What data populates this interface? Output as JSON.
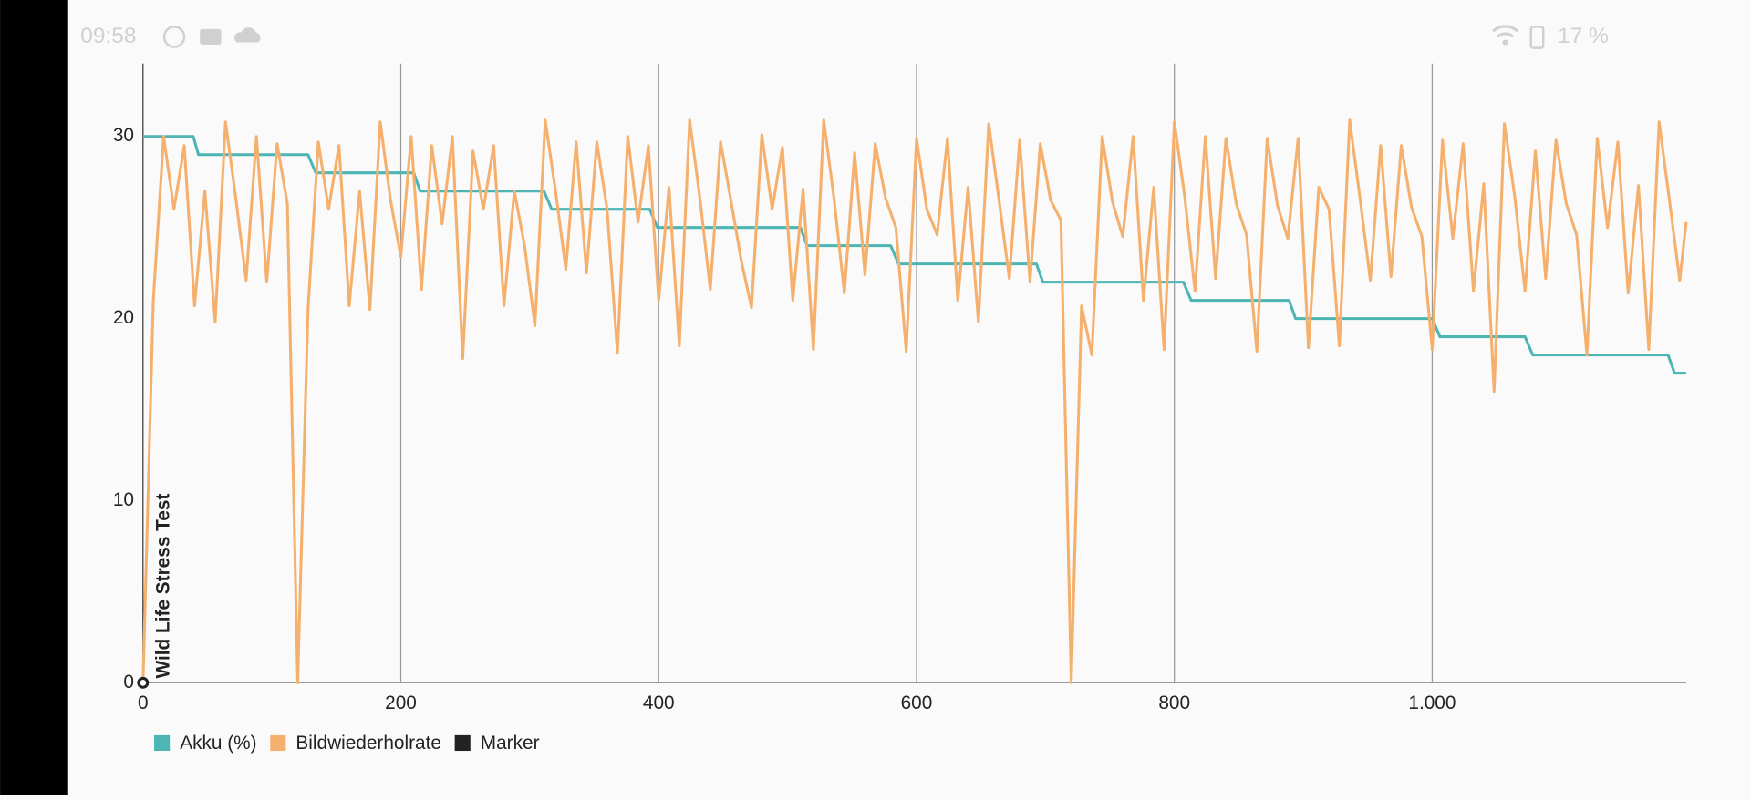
{
  "status_bar": {
    "time": "09:58",
    "battery": "17 %"
  },
  "chart_data": {
    "type": "line",
    "annotations": [
      {
        "text": "Wild Life Stress Test",
        "x": 0
      }
    ],
    "xlim": [
      0,
      1197
    ],
    "ylim": [
      0,
      34
    ],
    "xticks": [
      0,
      200,
      400,
      600,
      800,
      {
        "value": 1000,
        "label": "1.000"
      }
    ],
    "yticks": [
      0,
      10,
      20,
      30
    ],
    "grid": "x",
    "series": [
      {
        "name": "Akku (%)",
        "color": "#4db6b4",
        "style": "line",
        "x": [
          0,
          39,
          43,
          128,
          134,
          210,
          215,
          311,
          317,
          393,
          399,
          510,
          515,
          580,
          586,
          693,
          698,
          807,
          813,
          889,
          894,
          1000,
          1006,
          1072,
          1078,
          1183,
          1188,
          1197
        ],
        "values": [
          30,
          30,
          29,
          29,
          28,
          28,
          27,
          27,
          26,
          26,
          25,
          25,
          24,
          24,
          23,
          23,
          22,
          22,
          21,
          21,
          20,
          20,
          19,
          19,
          18,
          18,
          17,
          17
        ]
      },
      {
        "name": "Bildwiederholrate",
        "color": "#f5b06e",
        "style": "line",
        "x": [
          0,
          8,
          16,
          24,
          32,
          40,
          48,
          56,
          64,
          72,
          80,
          88,
          96,
          104,
          112,
          120,
          128,
          136,
          144,
          152,
          160,
          168,
          176,
          184,
          192,
          200,
          208,
          216,
          224,
          232,
          240,
          248,
          256,
          264,
          272,
          280,
          288,
          296,
          304,
          312,
          320,
          328,
          336,
          344,
          352,
          360,
          368,
          376,
          384,
          392,
          400,
          408,
          416,
          424,
          432,
          440,
          448,
          456,
          464,
          472,
          480,
          488,
          496,
          504,
          512,
          520,
          528,
          536,
          544,
          552,
          560,
          568,
          576,
          584,
          592,
          600,
          608,
          616,
          624,
          632,
          640,
          648,
          656,
          664,
          672,
          680,
          688,
          696,
          704,
          712,
          720,
          728,
          736,
          744,
          752,
          760,
          768,
          776,
          784,
          792,
          800,
          808,
          816,
          824,
          832,
          840,
          848,
          856,
          864,
          872,
          880,
          888,
          896,
          904,
          912,
          920,
          928,
          936,
          944,
          952,
          960,
          968,
          976,
          984,
          992,
          1000,
          1008,
          1016,
          1024,
          1032,
          1040,
          1048,
          1056,
          1064,
          1072,
          1080,
          1088,
          1096,
          1104,
          1112,
          1120,
          1128,
          1136,
          1144,
          1152,
          1160,
          1168,
          1176,
          1184,
          1192,
          1197
        ],
        "values": [
          0,
          21,
          30,
          26,
          29.5,
          20.7,
          27,
          19.8,
          30.8,
          26.6,
          22.1,
          30,
          22,
          29.6,
          26.3,
          0,
          20.5,
          29.7,
          26,
          29.5,
          20.7,
          27,
          20.5,
          30.8,
          26.5,
          23.4,
          30,
          21.6,
          29.5,
          25.2,
          30,
          17.8,
          29.2,
          26,
          29.5,
          20.7,
          27,
          24,
          19.6,
          30.9,
          27,
          22.7,
          29.7,
          22.5,
          29.7,
          26,
          18.1,
          30,
          25.3,
          29.5,
          21,
          27.2,
          18.5,
          30.9,
          26.6,
          21.6,
          29.7,
          26.5,
          23.2,
          20.6,
          30.1,
          26,
          29.4,
          21,
          27.1,
          18.3,
          30.9,
          26.6,
          21.4,
          29.1,
          22.4,
          29.6,
          26.6,
          25,
          18.2,
          29.9,
          26,
          24.6,
          29.9,
          21,
          27.2,
          19.8,
          30.7,
          26.5,
          22.2,
          29.8,
          22,
          29.6,
          26.5,
          25.4,
          0,
          20.7,
          18,
          30,
          26.4,
          24.5,
          30,
          21,
          27.2,
          18.3,
          30.8,
          26.7,
          21.5,
          30,
          22.2,
          29.9,
          26.3,
          24.6,
          18.2,
          29.9,
          26.2,
          24.4,
          29.9,
          18.4,
          27.2,
          26,
          18.5,
          30.9,
          26.6,
          22.1,
          29.5,
          22.3,
          29.5,
          26.1,
          24.5,
          18.3,
          29.8,
          24.4,
          29.6,
          21.5,
          27.4,
          16,
          30.7,
          26.7,
          21.5,
          29.2,
          22.2,
          29.8,
          26.3,
          24.6,
          18,
          29.9,
          25,
          29.7,
          21.4,
          27.3,
          18.3,
          30.8,
          26.5,
          22.1,
          25.3
        ]
      },
      {
        "name": "Marker",
        "color": "#222222",
        "style": "point",
        "x": [
          0
        ],
        "values": [
          0
        ]
      }
    ]
  }
}
